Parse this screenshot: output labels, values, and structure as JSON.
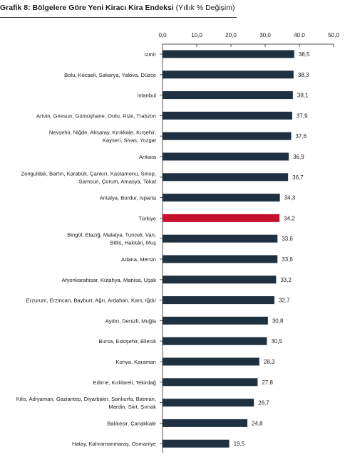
{
  "header": {
    "title_bold": "Grafik 8: Bölgelere Göre Yeni Kiracı Kira Endeksi",
    "title_rest": " (Yıllık % Değişim)"
  },
  "colors": {
    "bar": "#1f3040",
    "highlight": "#c8102e",
    "axis": "#555555",
    "text": "#1a1a1a"
  },
  "chart_data": {
    "type": "bar",
    "orientation": "horizontal",
    "xlim": [
      0,
      50
    ],
    "ticks": [
      "0,0",
      "10,0",
      "20,0",
      "30,0",
      "40,0",
      "50,0"
    ],
    "categories": [
      [
        "İzmir"
      ],
      [
        "Bolu, Kocaeli, Sakarya, Yalova, Düzce"
      ],
      [
        "İstanbul"
      ],
      [
        "Artvin, Giresun, Gümüşhane, Ordu, Rize, Trabzon"
      ],
      [
        "Nevşehir, Niğde, Aksaray, Kırıkkale, Kırşehir,",
        "Kayseri, Sivas, Yozgat"
      ],
      [
        "Ankara"
      ],
      [
        "Zonguldak, Bartın, Karabük, Çankırı, Kastamonu, Sinop,",
        "Samsun, Çorum, Amasya, Tokat"
      ],
      [
        "Antalya, Burdur, Isparta"
      ],
      [
        "Türkiye"
      ],
      [
        "Bingöl, Elazığ, Malatya, Tunceli, Van,",
        "Bitlis, Hakkâri, Muş"
      ],
      [
        "Adana, Mersin"
      ],
      [
        "Afyonkarahisar, Kütahya, Manisa, Uşak"
      ],
      [
        "Erzurum, Erzincan, Bayburt, Ağrı, Ardahan, Kars, Iğdır"
      ],
      [
        "Aydın, Denizli, Muğla"
      ],
      [
        "Bursa, Eskişehir, Bilecik"
      ],
      [
        "Konya, Karaman"
      ],
      [
        "Edirne, Kırklareli, Tekirdağ"
      ],
      [
        "Kilis, Adıyaman, Gaziantep, Diyarbakır, Şanlıurfa, Batman,",
        "Mardin, Siirt, Şırnak"
      ],
      [
        "Balıkesir, Çanakkale"
      ],
      [
        "Hatay, Kahramanmaraş, Osmaniye"
      ]
    ],
    "values": [
      38.5,
      38.3,
      38.1,
      37.9,
      37.6,
      36.9,
      36.7,
      34.3,
      34.2,
      33.6,
      33.6,
      33.2,
      32.7,
      30.8,
      30.5,
      28.3,
      27.8,
      26.7,
      24.8,
      19.5
    ],
    "value_labels": [
      "38,5",
      "38,3",
      "38,1",
      "37,9",
      "37,6",
      "36,9",
      "36,7",
      "34,3",
      "34,2",
      "33,6",
      "33,6",
      "33,2",
      "32,7",
      "30,8",
      "30,5",
      "28,3",
      "27,8",
      "26,7",
      "24,8",
      "19,5"
    ],
    "highlight_category": "Türkiye"
  }
}
